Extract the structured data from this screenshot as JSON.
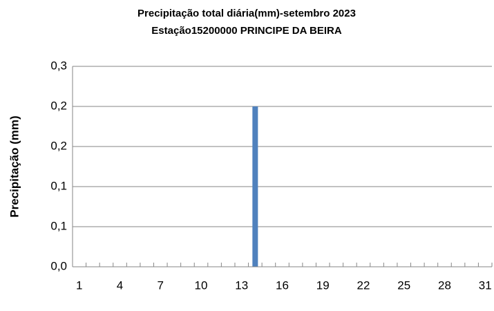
{
  "chart_data": {
    "type": "bar",
    "title": "Precipitação total diária(mm)-setembro 2023",
    "subtitle": "Estação15200000 PRINCIPE DA BEIRA",
    "y_label": "Precipitação (mm)",
    "categories": [
      1,
      null,
      null,
      4,
      null,
      null,
      7,
      null,
      null,
      10,
      null,
      null,
      13,
      null,
      null,
      16,
      null,
      null,
      19,
      null,
      null,
      22,
      null,
      null,
      25,
      null,
      null,
      28,
      null,
      null,
      31
    ],
    "values": [
      0,
      0,
      0,
      0,
      0,
      0,
      0,
      0,
      0,
      0,
      0,
      0,
      0,
      0.2,
      0,
      0,
      0,
      0,
      0,
      0,
      0,
      0,
      0,
      0,
      0,
      0,
      0,
      0,
      0,
      0,
      0
    ],
    "color": "#4f81bd",
    "ylim": [
      0,
      0.25
    ],
    "yticks": [
      {
        "value": 0,
        "label": "0,0"
      },
      {
        "value": 0.05,
        "label": "0,1"
      },
      {
        "value": 0.1,
        "label": "0,1"
      },
      {
        "value": 0.15,
        "label": "0,2"
      },
      {
        "value": 0.2,
        "label": "0,2"
      },
      {
        "value": 0.25,
        "label": "0,3"
      }
    ],
    "grid": true
  }
}
